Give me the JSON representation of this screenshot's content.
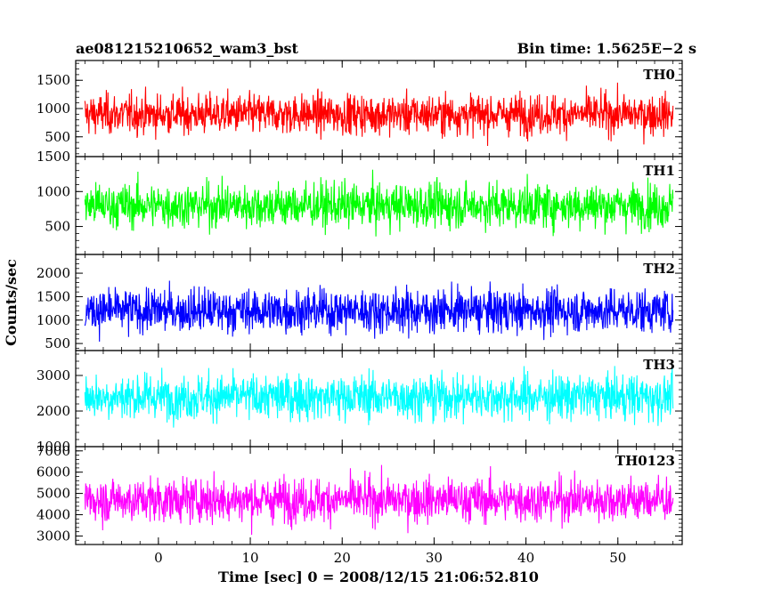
{
  "header": {
    "title": "ae081215210652_wam3_bst",
    "bin_time": "Bin time: 1.5625E−2 s"
  },
  "chart_data": {
    "type": "line",
    "xlabel": "Time [sec] 0 = 2008/12/15 21:06:52.810",
    "ylabel": "Counts/sec",
    "xlim": [
      -9,
      57
    ],
    "x_range_data": [
      -8,
      56
    ],
    "x_ticks": [
      0,
      10,
      20,
      30,
      40,
      50
    ],
    "panels": [
      {
        "name": "TH0",
        "color": "#ff0000",
        "ylim": [
          150,
          1850
        ],
        "y_ticks": [
          500,
          1000,
          1500
        ],
        "y_range": [
          150,
          1650
        ],
        "mean": 900
      },
      {
        "name": "TH1",
        "color": "#00ff00",
        "ylim": [
          100,
          1500
        ],
        "y_ticks": [
          500,
          1000,
          1500
        ],
        "y_range": [
          150,
          1500
        ],
        "mean": 800
      },
      {
        "name": "TH2",
        "color": "#0000ff",
        "ylim": [
          350,
          2400
        ],
        "y_ticks": [
          500,
          1000,
          1500,
          2000
        ],
        "y_range": [
          380,
          2350
        ],
        "mean": 1200
      },
      {
        "name": "TH3",
        "color": "#00ffff",
        "ylim": [
          1000,
          3700
        ],
        "y_ticks": [
          1000,
          2000,
          3000
        ],
        "y_range": [
          1000,
          3700
        ],
        "mean": 2400
      },
      {
        "name": "TH0123",
        "color": "#ff00ff",
        "ylim": [
          2600,
          7200
        ],
        "y_ticks": [
          3000,
          4000,
          5000,
          6000,
          7000
        ],
        "y_range": [
          2600,
          7000
        ],
        "mean": 4700
      }
    ]
  }
}
